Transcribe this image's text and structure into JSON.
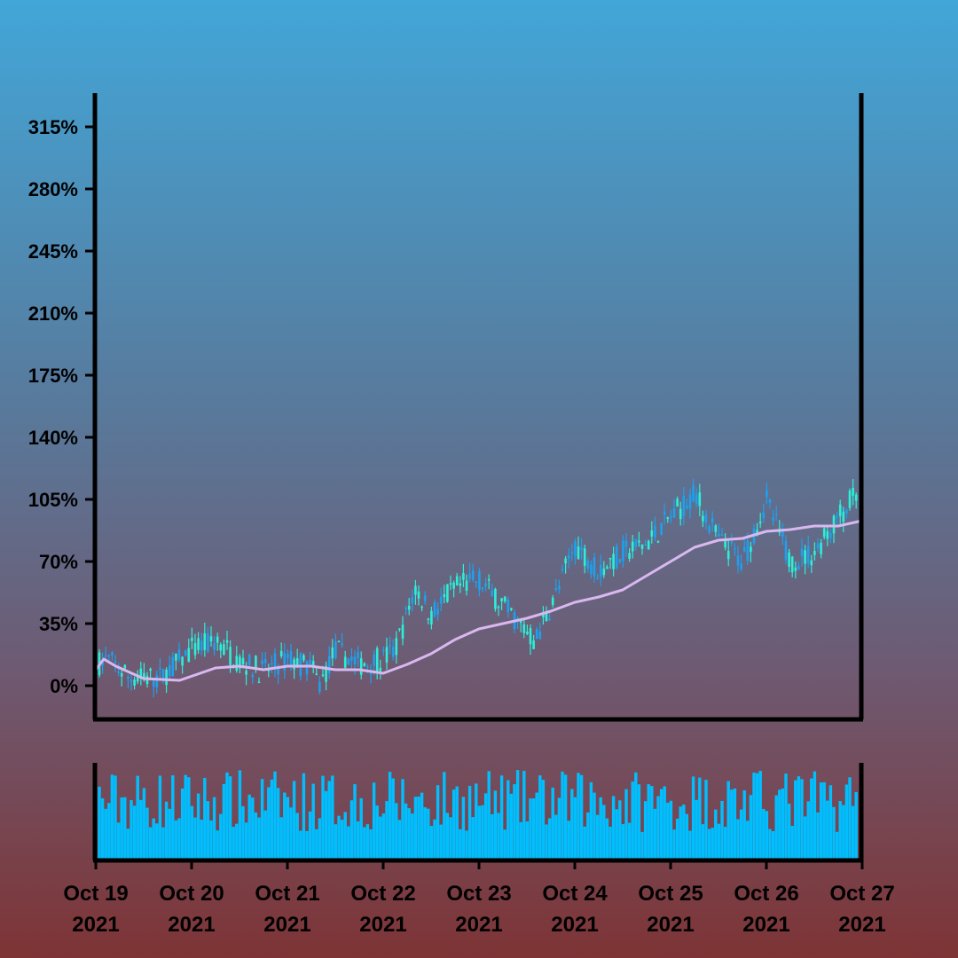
{
  "chart_data": {
    "type": "candlestick",
    "title": "",
    "xlabel": "",
    "ylabel": "",
    "grid": false,
    "colors": {
      "up": "#2af0d8",
      "down": "#1ea0ee",
      "ma": "#d9b8f0",
      "volume": "#00bfff",
      "axis": "#000000"
    },
    "yticks": [
      "0%",
      "35%",
      "70%",
      "105%",
      "140%",
      "175%",
      "210%",
      "245%",
      "280%",
      "315%"
    ],
    "ylim": [
      -18,
      332
    ],
    "xticks": [
      {
        "month_day": "Oct 19",
        "year": "2021"
      },
      {
        "month_day": "Oct 20",
        "year": "2021"
      },
      {
        "month_day": "Oct 21",
        "year": "2021"
      },
      {
        "month_day": "Oct 22",
        "year": "2021"
      },
      {
        "month_day": "Oct 23",
        "year": "2021"
      },
      {
        "month_day": "Oct 24",
        "year": "2021"
      },
      {
        "month_day": "Oct 25",
        "year": "2021"
      },
      {
        "month_day": "Oct 26",
        "year": "2021"
      },
      {
        "month_day": "Oct 27",
        "year": "2021"
      }
    ],
    "price_keypoints_pct": [
      [
        "2021-10-19T00:00",
        12
      ],
      [
        "2021-10-19T03:00",
        15
      ],
      [
        "2021-10-19T08:00",
        5
      ],
      [
        "2021-10-19T16:00",
        4
      ],
      [
        "2021-10-20T00:00",
        20
      ],
      [
        "2021-10-20T06:00",
        25
      ],
      [
        "2021-10-20T12:00",
        14
      ],
      [
        "2021-10-20T18:00",
        8
      ],
      [
        "2021-10-21T00:00",
        15
      ],
      [
        "2021-10-21T06:00",
        10
      ],
      [
        "2021-10-21T08:00",
        0
      ],
      [
        "2021-10-21T12:00",
        20
      ],
      [
        "2021-10-21T18:00",
        12
      ],
      [
        "2021-10-22T00:00",
        15
      ],
      [
        "2021-10-22T03:00",
        20
      ],
      [
        "2021-10-22T08:00",
        55
      ],
      [
        "2021-10-22T12:00",
        40
      ],
      [
        "2021-10-22T18:00",
        55
      ],
      [
        "2021-10-23T00:00",
        60
      ],
      [
        "2021-10-23T06:00",
        45
      ],
      [
        "2021-10-23T12:00",
        30
      ],
      [
        "2021-10-23T14:00",
        25
      ],
      [
        "2021-10-23T20:00",
        55
      ],
      [
        "2021-10-24T00:00",
        80
      ],
      [
        "2021-10-24T06:00",
        65
      ],
      [
        "2021-10-24T12:00",
        75
      ],
      [
        "2021-10-24T18:00",
        80
      ],
      [
        "2021-10-25T00:00",
        95
      ],
      [
        "2021-10-25T06:00",
        108
      ],
      [
        "2021-10-25T12:00",
        82
      ],
      [
        "2021-10-25T18:00",
        70
      ],
      [
        "2021-10-26T00:00",
        105
      ],
      [
        "2021-10-26T06:00",
        70
      ],
      [
        "2021-10-26T12:00",
        75
      ],
      [
        "2021-10-26T18:00",
        95
      ],
      [
        "2021-10-27T00:00",
        112
      ]
    ],
    "moving_average_pct": [
      [
        "2021-10-19T00:00",
        9
      ],
      [
        "2021-10-19T02:00",
        15
      ],
      [
        "2021-10-19T05:00",
        11
      ],
      [
        "2021-10-19T12:00",
        4
      ],
      [
        "2021-10-19T21:00",
        3
      ],
      [
        "2021-10-20T06:00",
        10
      ],
      [
        "2021-10-20T12:00",
        11
      ],
      [
        "2021-10-20T18:00",
        9
      ],
      [
        "2021-10-21T00:00",
        11
      ],
      [
        "2021-10-21T06:00",
        11
      ],
      [
        "2021-10-21T12:00",
        9
      ],
      [
        "2021-10-21T18:00",
        9
      ],
      [
        "2021-10-22T00:00",
        7
      ],
      [
        "2021-10-22T06:00",
        12
      ],
      [
        "2021-10-22T12:00",
        18
      ],
      [
        "2021-10-22T18:00",
        26
      ],
      [
        "2021-10-23T00:00",
        32
      ],
      [
        "2021-10-23T06:00",
        35
      ],
      [
        "2021-10-23T12:00",
        38
      ],
      [
        "2021-10-23T18:00",
        42
      ],
      [
        "2021-10-24T00:00",
        47
      ],
      [
        "2021-10-24T06:00",
        50
      ],
      [
        "2021-10-24T12:00",
        54
      ],
      [
        "2021-10-24T18:00",
        62
      ],
      [
        "2021-10-25T00:00",
        70
      ],
      [
        "2021-10-25T06:00",
        78
      ],
      [
        "2021-10-25T12:00",
        82
      ],
      [
        "2021-10-25T18:00",
        83
      ],
      [
        "2021-10-26T00:00",
        87
      ],
      [
        "2021-10-26T06:00",
        88
      ],
      [
        "2021-10-26T12:00",
        90
      ],
      [
        "2021-10-26T18:00",
        90
      ],
      [
        "2021-10-27T00:00",
        93
      ]
    ],
    "volume_relative_range": [
      0.3,
      1.0
    ]
  }
}
